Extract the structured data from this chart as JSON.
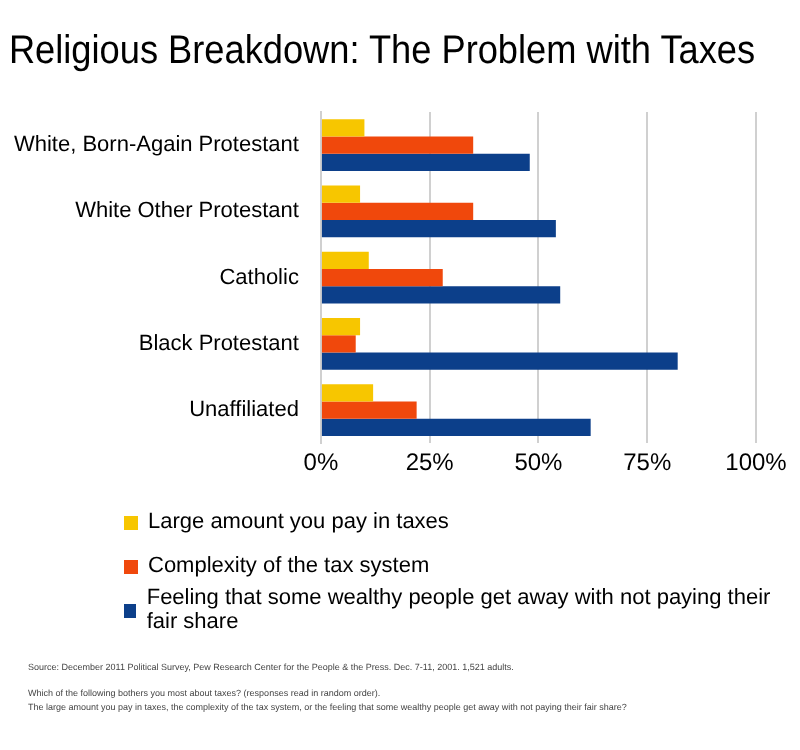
{
  "chart_data": {
    "type": "bar",
    "orientation": "horizontal",
    "title": "Religious Breakdown: The Problem with Taxes",
    "categories": [
      "White, Born-Again Protestant",
      "White Other Protestant",
      "Catholic",
      "Black Protestant",
      "Unaffiliated"
    ],
    "series": [
      {
        "name": "Large amount you pay in taxes",
        "color": "#f7c600",
        "values": [
          10,
          9,
          11,
          9,
          12
        ]
      },
      {
        "name": "Complexity of the tax system",
        "color": "#f0480c",
        "values": [
          35,
          35,
          28,
          8,
          22
        ]
      },
      {
        "name": "Feeling that some wealthy people get away with not paying their fair share",
        "color": "#0c3f8a",
        "values": [
          48,
          54,
          55,
          82,
          62
        ]
      }
    ],
    "xlim": [
      0,
      100
    ],
    "xticks": [
      {
        "value": 0,
        "label": "0%"
      },
      {
        "value": 25,
        "label": "25%"
      },
      {
        "value": 50,
        "label": "50%"
      },
      {
        "value": 75,
        "label": "75%"
      },
      {
        "value": 100,
        "label": "100%"
      }
    ],
    "grid": "x",
    "legend": "bottom",
    "annotations": [
      "Source: December 2011 Political Survey, Pew Research Center for the People & the Press.  Dec. 7-11, 2001.  1,521 adults.",
      "Which of the following bothers you most about taxes? (responses read in random order).",
      "The large amount you pay in taxes, the complexity of the tax system, or the feeling that some wealthy people get away with not paying their fair share?"
    ]
  }
}
